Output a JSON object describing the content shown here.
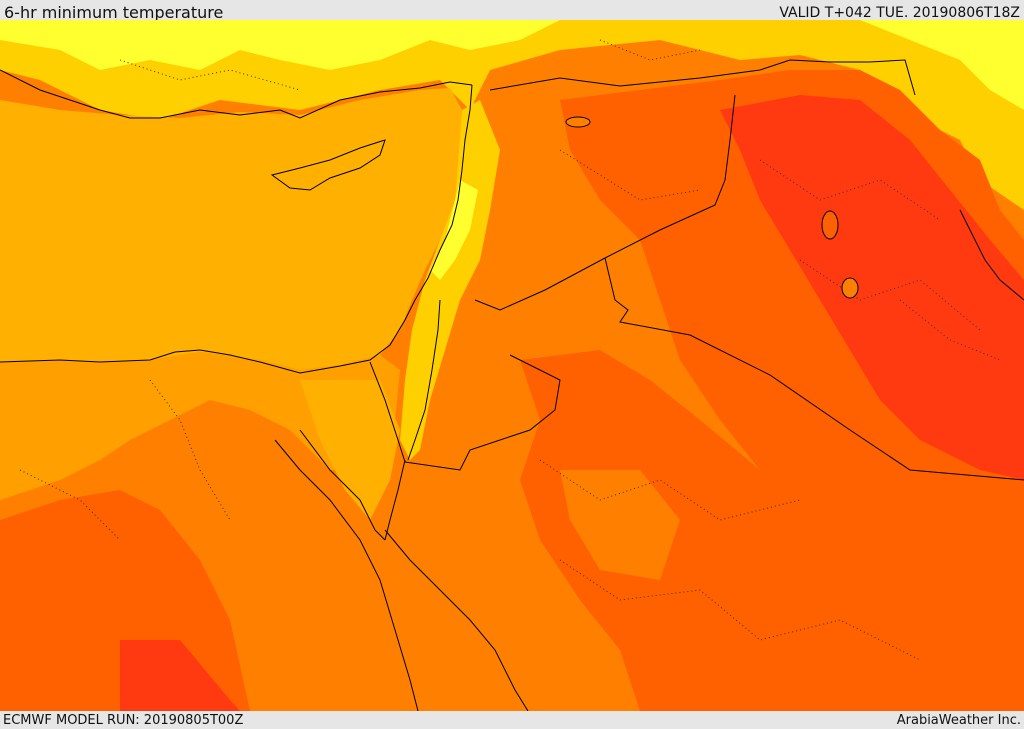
{
  "header": {
    "title": "6-hr minimum temperature",
    "valid": "VALID T+042 TUE. 20190806T18Z"
  },
  "footer": {
    "model_run": "ECMWF MODEL RUN: 20190805T00Z",
    "credit": "ArabiaWeather Inc."
  },
  "map": {
    "colors": {
      "sea": "#ffb000",
      "band_yellow": "#ffff30",
      "band_light": "#ffd000",
      "band_amber": "#ffa000",
      "band_orange": "#ff8000",
      "band_deep_orange": "#ff6000",
      "band_red": "#ff3a10",
      "coastline": "#000000",
      "border": "#000000"
    }
  }
}
